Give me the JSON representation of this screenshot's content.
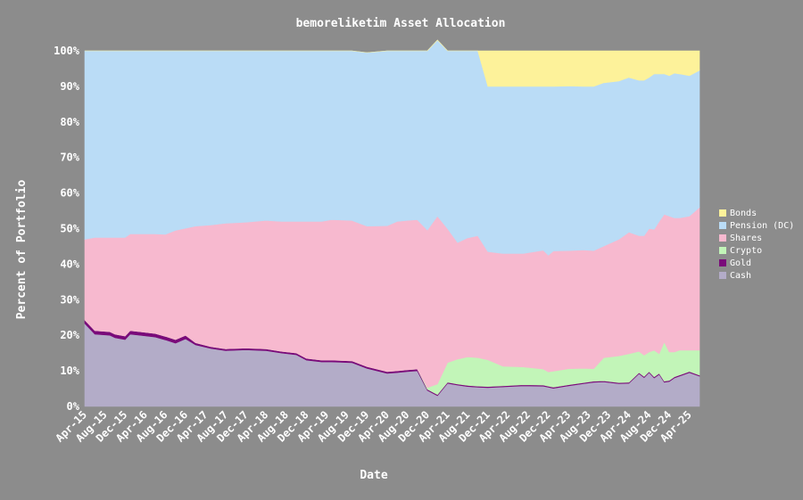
{
  "chart_data": {
    "type": "area",
    "stacked": true,
    "title": "bemoreliketim Asset Allocation",
    "xlabel": "Date",
    "ylabel": "Percent of Portfolio",
    "y_tick_labels": [
      "0%",
      "10%",
      "20%",
      "30%",
      "40%",
      "50%",
      "60%",
      "70%",
      "80%",
      "90%",
      "100%"
    ],
    "ylim": [
      0,
      100
    ],
    "x_range": [
      "2015-04",
      "2025-06"
    ],
    "x_tick_labels": [
      "Apr-15",
      "Aug-15",
      "Dec-15",
      "Apr-16",
      "Aug-16",
      "Dec-16",
      "Apr-17",
      "Aug-17",
      "Dec-17",
      "Apr-18",
      "Aug-18",
      "Dec-18",
      "Apr-19",
      "Aug-19",
      "Dec-19",
      "Apr-20",
      "Aug-20",
      "Dec-20",
      "Apr-21",
      "Aug-21",
      "Dec-21",
      "Apr-22",
      "Aug-22",
      "Dec-22",
      "Apr-23",
      "Aug-23",
      "Dec-23",
      "Apr-24",
      "Aug-24",
      "Dec-24",
      "Apr-25"
    ],
    "grid": false,
    "legend_position": "right",
    "stack_order": [
      "Cash",
      "Gold",
      "Crypto",
      "Shares",
      "Pension (DC)",
      "Bonds"
    ],
    "legend_order": [
      "Bonds",
      "Pension (DC)",
      "Shares",
      "Crypto",
      "Gold",
      "Cash"
    ],
    "colors": {
      "Cash": "#b3acc8",
      "Gold": "#7a0a7a",
      "Crypto": "#c2f5b8",
      "Shares": "#f7b9cf",
      "Pension (DC)": "#badcf6",
      "Bonds": "#fdf29a"
    },
    "x": [
      "2015-04",
      "2015-06",
      "2015-09",
      "2015-10",
      "2015-12",
      "2016-01",
      "2016-03",
      "2016-06",
      "2016-08",
      "2016-10",
      "2016-12",
      "2017-02",
      "2017-05",
      "2017-08",
      "2017-12",
      "2018-04",
      "2018-07",
      "2018-10",
      "2018-12",
      "2019-03",
      "2019-05",
      "2019-09",
      "2019-12",
      "2020-04",
      "2020-06",
      "2020-08",
      "2020-10",
      "2020-12",
      "2021-02",
      "2021-04",
      "2021-06",
      "2021-08",
      "2021-10",
      "2021-12",
      "2022-03",
      "2022-07",
      "2022-11",
      "2022-12",
      "2023-01",
      "2023-04",
      "2023-07",
      "2023-09",
      "2023-11",
      "2024-02",
      "2024-04",
      "2024-06",
      "2024-07",
      "2024-08",
      "2024-09",
      "2024-10",
      "2024-11",
      "2024-12",
      "2025-01",
      "2025-02",
      "2025-04",
      "2025-06"
    ],
    "series": [
      {
        "name": "Cash",
        "values": [
          23.3,
          20.3,
          20.0,
          19.3,
          18.8,
          20.3,
          20.0,
          19.5,
          18.7,
          17.8,
          19.0,
          17.3,
          16.3,
          15.7,
          15.9,
          15.7,
          15.0,
          14.5,
          13.0,
          12.5,
          12.5,
          12.3,
          10.7,
          9.3,
          9.5,
          9.8,
          10.0,
          4.5,
          3.0,
          6.5,
          6.0,
          5.6,
          5.4,
          5.3,
          5.5,
          5.8,
          5.7,
          5.4,
          5.1,
          5.8,
          6.4,
          6.8,
          6.9,
          6.4,
          6.5,
          9.2,
          8.1,
          9.5,
          8.0,
          9.0,
          6.8,
          7.0,
          8.0,
          8.5,
          9.5,
          8.5
        ]
      },
      {
        "name": "Gold",
        "values": [
          1.0,
          1.0,
          1.0,
          1.0,
          1.0,
          1.0,
          1.0,
          1.0,
          1.0,
          1.0,
          1.0,
          0.6,
          0.5,
          0.5,
          0.5,
          0.5,
          0.5,
          0.5,
          0.5,
          0.5,
          0.5,
          0.5,
          0.5,
          0.5,
          0.5,
          0.5,
          0.5,
          0.3,
          0.3,
          0.3,
          0.3,
          0.3,
          0.3,
          0.3,
          0.3,
          0.3,
          0.3,
          0.3,
          0.3,
          0.3,
          0.3,
          0.3,
          0.3,
          0.3,
          0.3,
          0.3,
          0.3,
          0.3,
          0.3,
          0.3,
          0.3,
          0.3,
          0.3,
          0.3,
          0.3,
          0.3
        ]
      },
      {
        "name": "Crypto",
        "values": [
          0,
          0,
          0,
          0,
          0,
          0,
          0,
          0,
          0,
          0,
          0,
          0,
          0,
          0,
          0,
          0,
          0,
          0,
          0,
          0,
          0,
          0,
          0,
          0,
          0,
          0,
          0,
          0.5,
          3.0,
          5.5,
          7.0,
          8.0,
          8.0,
          7.5,
          5.5,
          5.0,
          4.5,
          4.0,
          4.5,
          4.5,
          4.0,
          3.5,
          6.5,
          7.5,
          8.0,
          6.0,
          6.0,
          5.5,
          7.5,
          5.5,
          11.0,
          8.0,
          7.0,
          7.0,
          6.0,
          7.0
        ]
      },
      {
        "name": "Shares",
        "values": [
          22.7,
          26.2,
          26.5,
          27.2,
          27.7,
          27.2,
          27.5,
          28.0,
          28.7,
          30.7,
          30.1,
          32.8,
          34.2,
          35.3,
          35.4,
          36.1,
          36.5,
          37.0,
          38.5,
          39.0,
          39.5,
          39.5,
          39.5,
          41.0,
          42.0,
          42.0,
          42.0,
          44.3,
          47.2,
          37.7,
          32.8,
          33.5,
          34.3,
          30.4,
          31.7,
          31.9,
          33.4,
          32.8,
          33.8,
          33.2,
          33.3,
          33.2,
          31.4,
          32.8,
          34.2,
          32.5,
          33.6,
          34.7,
          34.0,
          37.2,
          35.9,
          38.2,
          37.7,
          37.2,
          37.7,
          40.2
        ]
      },
      {
        "name": "Pension (DC)",
        "values": [
          53.0,
          52.5,
          52.5,
          52.5,
          52.5,
          51.5,
          51.5,
          51.5,
          51.6,
          50.5,
          49.9,
          49.3,
          49.0,
          48.5,
          48.2,
          47.7,
          48.0,
          48.0,
          48.0,
          48.0,
          47.5,
          47.7,
          48.8,
          49.2,
          48.0,
          47.7,
          47.5,
          50.4,
          49.5,
          50.0,
          53.9,
          52.6,
          52.0,
          46.5,
          47.0,
          47.0,
          46.1,
          47.5,
          46.3,
          46.3,
          46.0,
          46.2,
          45.9,
          44.5,
          43.5,
          43.7,
          43.7,
          42.5,
          43.7,
          41.5,
          39.5,
          39.5,
          40.7,
          40.5,
          39.5,
          38.5
        ]
      },
      {
        "name": "Bonds",
        "values": [
          0,
          0,
          0,
          0,
          0,
          0,
          0,
          0,
          0,
          0,
          0,
          0,
          0,
          0,
          0,
          0,
          0,
          0,
          0,
          0,
          0,
          0,
          0,
          0,
          0,
          0,
          0,
          0,
          0,
          0,
          0,
          0,
          0,
          10.0,
          10.0,
          10.0,
          10.0,
          10.0,
          10.0,
          9.9,
          10.0,
          10.0,
          9.0,
          8.5,
          7.5,
          8.3,
          8.3,
          7.5,
          6.5,
          6.5,
          6.5,
          7.0,
          6.3,
          6.5,
          7.0,
          5.5
        ]
      }
    ]
  }
}
